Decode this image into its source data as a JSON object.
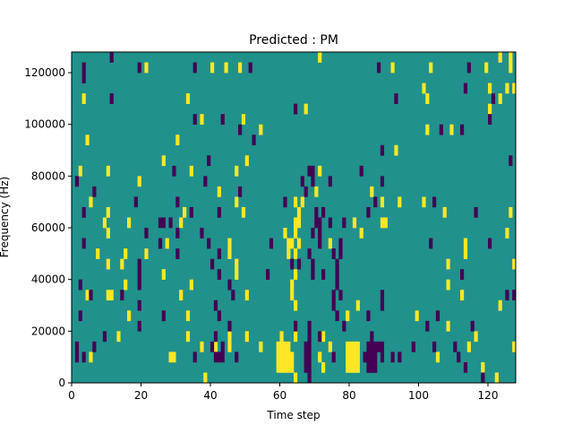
{
  "chart_data": {
    "type": "heatmap",
    "title": "Predicted : PM",
    "xlabel": "Time step",
    "ylabel": "Frequency (Hz)",
    "xlim": [
      0,
      128
    ],
    "ylim": [
      0,
      128000
    ],
    "n_time_steps": 128,
    "n_freq_bins": 32,
    "bin_hz": 4000,
    "xticks": [
      0,
      20,
      40,
      60,
      80,
      100,
      120
    ],
    "xtick_labels": [
      "0",
      "20",
      "40",
      "60",
      "80",
      "100",
      "120"
    ],
    "yticks": [
      0,
      20000,
      40000,
      60000,
      80000,
      100000,
      120000
    ],
    "ytick_labels": [
      "0",
      "20000",
      "40000",
      "60000",
      "80000",
      "100000",
      "120000"
    ],
    "colormap": "viridis",
    "background_value": 0.5,
    "colors": {
      "low": "#440154",
      "mid": "#21918c",
      "high": "#fde725"
    },
    "high_cells_by_bin": [
      [
        38,
        64,
        122
      ],
      [
        59,
        60,
        61,
        62,
        63,
        72,
        79,
        80,
        81,
        82,
        118
      ],
      [
        5,
        28,
        29,
        59,
        60,
        61,
        62,
        63,
        71,
        79,
        80,
        81,
        82,
        105
      ],
      [
        37,
        41,
        45,
        54,
        59,
        60,
        61,
        62,
        74,
        79,
        80,
        81,
        82,
        114,
        127
      ],
      [
        13,
        33,
        45,
        50,
        60,
        64,
        72,
        116
      ],
      [
        108
      ],
      [
        16,
        33,
        79,
        99
      ],
      [
        64,
        82,
        123
      ],
      [
        4,
        10,
        11,
        31,
        50,
        63,
        112
      ],
      [
        15,
        34,
        63,
        108
      ],
      [
        26,
        47,
        64
      ],
      [
        10,
        14,
        47,
        108,
        127
      ],
      [
        7,
        15,
        21,
        45,
        62,
        64,
        113
      ],
      [
        27,
        45,
        62,
        63,
        65,
        74,
        113
      ],
      [
        10,
        61,
        64,
        83,
        125
      ],
      [
        9,
        16,
        31,
        64,
        65,
        81,
        89,
        90
      ],
      [
        10,
        32,
        49,
        65,
        107,
        126
      ],
      [
        5,
        47,
        64,
        66,
        89,
        94,
        101
      ],
      [
        42,
        70,
        86
      ],
      [
        19
      ],
      [
        2,
        10,
        34,
        47,
        71
      ],
      [
        26,
        50
      ],
      [
        93
      ],
      [
        4,
        30
      ],
      [
        54,
        102,
        109
      ],
      [
        37,
        49
      ],
      [
        67,
        120
      ],
      [
        3,
        33,
        102,
        123
      ],
      [
        101,
        120,
        125,
        127
      ],
      [],
      [
        21,
        40,
        44,
        48,
        92,
        103,
        119,
        126
      ],
      [
        71,
        123,
        126
      ]
    ],
    "low_cells_by_bin": [
      [
        68,
        118
      ],
      [
        67,
        68,
        85,
        86,
        87,
        113
      ],
      [
        1,
        3,
        35,
        41,
        42,
        43,
        47,
        67,
        68,
        75,
        84,
        85,
        86,
        87,
        89,
        92,
        94,
        111
      ],
      [
        1,
        6,
        40,
        43,
        67,
        68,
        85,
        86,
        87,
        88,
        89,
        98,
        104,
        110
      ],
      [
        9,
        41,
        68,
        71,
        86
      ],
      [
        19,
        45,
        64,
        68,
        78,
        102,
        115
      ],
      [
        2,
        26,
        42,
        76,
        85,
        105
      ],
      [
        19,
        41,
        75,
        89
      ],
      [
        5,
        14,
        46,
        75,
        77,
        89,
        125,
        127
      ],
      [
        2,
        19,
        45,
        76
      ],
      [
        19,
        42,
        56,
        69,
        72,
        76,
        112
      ],
      [
        19,
        40,
        63,
        65,
        69,
        76
      ],
      [
        30,
        42,
        68,
        75,
        77
      ],
      [
        3,
        25,
        39,
        57,
        71,
        77,
        103,
        120
      ],
      [
        21,
        30,
        37,
        69,
        71
      ],
      [
        25,
        26,
        28,
        70,
        71,
        74,
        78
      ],
      [
        3,
        34,
        42,
        70,
        72,
        85,
        116
      ],
      [
        18,
        30,
        61,
        87,
        104
      ],
      [
        6,
        48,
        67
      ],
      [
        1,
        38,
        66,
        69,
        74,
        89
      ],
      [
        29,
        68,
        69,
        83
      ],
      [
        39,
        126
      ],
      [
        89
      ],
      [
        52
      ],
      [
        48,
        106,
        112
      ],
      [
        35,
        43,
        120
      ],
      [
        64
      ],
      [
        11,
        93,
        121
      ],
      [
        113
      ],
      [
        3
      ],
      [
        3,
        19,
        35,
        51,
        88,
        114
      ],
      [
        11
      ]
    ]
  }
}
